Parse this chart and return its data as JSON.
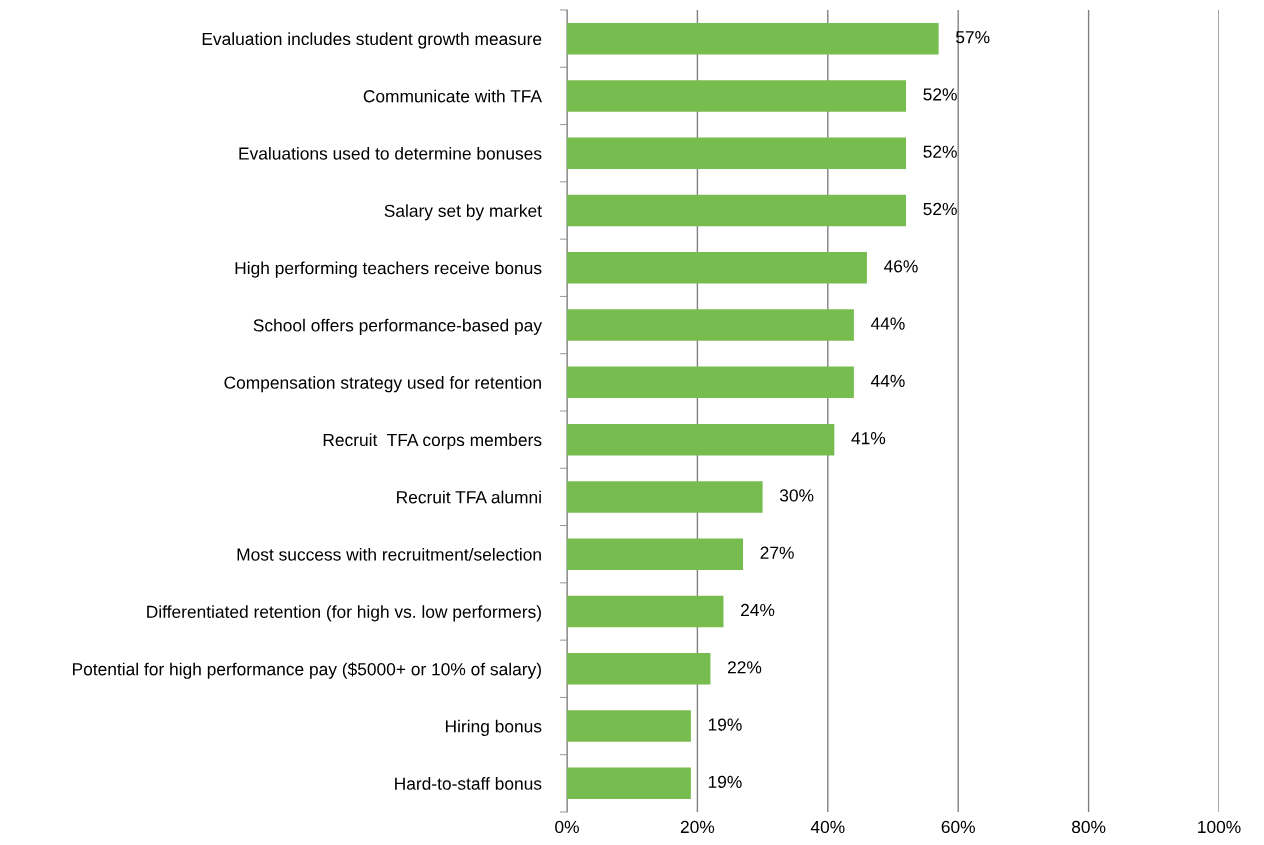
{
  "chart_data": {
    "type": "bar",
    "orientation": "horizontal",
    "categories": [
      "Evaluation includes student growth measure",
      "Communicate with TFA",
      "Evaluations used to determine bonuses",
      "Salary set by market",
      "High performing teachers receive bonus",
      "School offers performance-based pay",
      "Compensation strategy used for retention",
      "Recruit  TFA corps members",
      "Recruit TFA alumni",
      "Most success with recruitment/selection",
      "Differentiated retention (for high vs. low performers)",
      "Potential for high performance pay ($5000+ or 10% of salary)",
      "Hiring bonus",
      "Hard-to-staff bonus"
    ],
    "values": [
      57,
      52,
      52,
      52,
      46,
      44,
      44,
      41,
      30,
      27,
      24,
      22,
      19,
      19
    ],
    "value_labels": [
      "57%",
      "52%",
      "52%",
      "52%",
      "46%",
      "44%",
      "44%",
      "41%",
      "30%",
      "27%",
      "24%",
      "22%",
      "19%",
      "19%"
    ],
    "color": "#77bc4f",
    "xlim": [
      0,
      100
    ],
    "xticks": [
      {
        "value": 0,
        "label": "0%"
      },
      {
        "value": 20,
        "label": "20%"
      },
      {
        "value": 40,
        "label": "40%"
      },
      {
        "value": 60,
        "label": "60%"
      },
      {
        "value": 80,
        "label": "80%"
      },
      {
        "value": 100,
        "label": "100%"
      }
    ],
    "grid": "x",
    "legend": false
  }
}
